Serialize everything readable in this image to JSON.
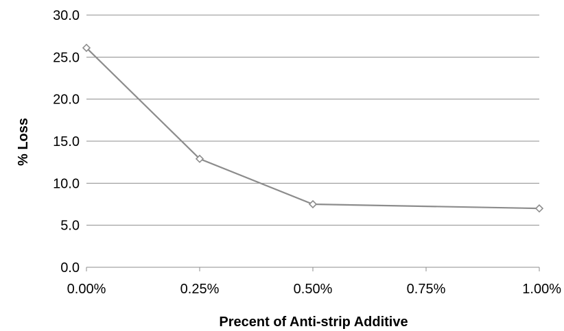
{
  "chart_data": {
    "type": "line",
    "xlabel": "Precent of Anti-strip Additive",
    "ylabel": "% Loss",
    "x_tick_labels": [
      "0.00%",
      "0.25%",
      "0.50%",
      "0.75%",
      "1.00%"
    ],
    "y_tick_labels": [
      "0.0",
      "5.0",
      "10.0",
      "15.0",
      "20.0",
      "25.0",
      "30.0"
    ],
    "ylim": [
      0,
      30
    ],
    "y_ticks": [
      0,
      5,
      10,
      15,
      20,
      25,
      30
    ],
    "grid": true,
    "legend": "none",
    "series": [
      {
        "x_labels": [
          "0.00%",
          "0.25%",
          "0.50%",
          "1.00%"
        ],
        "values": [
          26.1,
          12.9,
          7.5,
          7.0
        ],
        "color": "#8c8c8c",
        "marker": "diamond"
      }
    ]
  }
}
